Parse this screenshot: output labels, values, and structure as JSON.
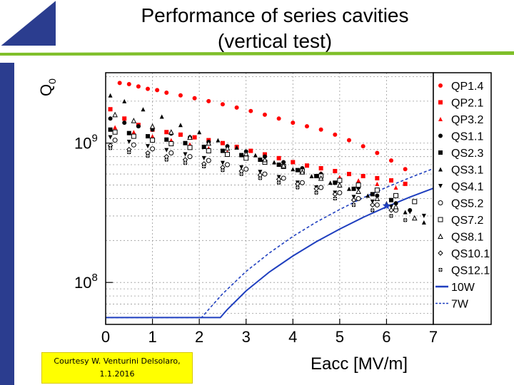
{
  "slide": {
    "title_line1": "Performance of series cavities",
    "title_line2": "(vertical test)",
    "courtesy_line1": "Courtesy W. Venturini Delsolaro,",
    "courtesy_line2": "1.1.2016",
    "colors": {
      "accent_green": "#7fbf2a",
      "accent_blue": "#2b3d8f",
      "courtesy_bg": "#ffff00"
    }
  },
  "chart_data": {
    "type": "scatter",
    "title": "",
    "xlabel": "Eacc [MV/m]",
    "ylabel": "Q0",
    "ylabel_main": "Q",
    "ylabel_sub": "0",
    "xlim": [
      0,
      7
    ],
    "ylim": [
      50000000.0,
      3200000000.0
    ],
    "y_scale": "log",
    "grid": true,
    "legend_position": "right",
    "x_ticks": [
      0,
      1,
      2,
      3,
      4,
      5,
      6,
      7
    ],
    "x_tick_labels": [
      "0",
      "1",
      "2",
      "3",
      "4",
      "5",
      "6",
      "7"
    ],
    "y_tick_labels": [
      {
        "value": 1000000000.0,
        "base": "10",
        "exp": "9"
      },
      {
        "value": 100000000.0,
        "base": "10",
        "exp": "8"
      }
    ],
    "series": [
      {
        "name": "QP1.4",
        "marker": "circle",
        "color": "#ff0000",
        "x": [
          0.3,
          0.5,
          0.7,
          0.9,
          1.1,
          1.3,
          1.6,
          1.9,
          2.2,
          2.5,
          2.8,
          3.1,
          3.4,
          3.7,
          4.0,
          4.3,
          4.6,
          4.9,
          5.2,
          5.5,
          5.8,
          6.1,
          6.4
        ],
        "y": [
          2700000000.0,
          2650000000.0,
          2550000000.0,
          2450000000.0,
          2400000000.0,
          2300000000.0,
          2200000000.0,
          2100000000.0,
          2000000000.0,
          1900000000.0,
          1800000000.0,
          1700000000.0,
          1600000000.0,
          1500000000.0,
          1400000000.0,
          1320000000.0,
          1250000000.0,
          1150000000.0,
          1050000000.0,
          950000000.0,
          850000000.0,
          750000000.0,
          650000000.0
        ]
      },
      {
        "name": "QP2.1",
        "marker": "square",
        "color": "#ff0000",
        "x": [
          0.1,
          0.4,
          0.7,
          1.0,
          1.3,
          1.6,
          1.9,
          2.2,
          2.5,
          2.8,
          3.1,
          3.4,
          3.7,
          4.0,
          4.3,
          4.6,
          4.9,
          5.2,
          5.5,
          5.8,
          6.1,
          6.4
        ],
        "y": [
          1750000000.0,
          1500000000.0,
          1350000000.0,
          1250000000.0,
          1200000000.0,
          1150000000.0,
          1100000000.0,
          1050000000.0,
          1000000000.0,
          940000000.0,
          880000000.0,
          830000000.0,
          780000000.0,
          730000000.0,
          690000000.0,
          660000000.0,
          630000000.0,
          600000000.0,
          580000000.0,
          560000000.0,
          540000000.0,
          510000000.0
        ]
      },
      {
        "name": "QP3.2",
        "marker": "triangle-up",
        "color": "#ff0000",
        "x": [
          0.2,
          0.6,
          1.0,
          1.4,
          1.8,
          2.2,
          2.6,
          3.0,
          3.4,
          3.8,
          4.2,
          4.6,
          5.0,
          5.4,
          5.8,
          6.2
        ],
        "y": [
          1300000000.0,
          1200000000.0,
          1120000000.0,
          1050000000.0,
          980000000.0,
          920000000.0,
          860000000.0,
          800000000.0,
          740000000.0,
          690000000.0,
          650000000.0,
          610000000.0,
          570000000.0,
          540000000.0,
          510000000.0,
          480000000.0
        ]
      },
      {
        "name": "QS1.1",
        "marker": "circle",
        "color": "#000000",
        "x": [
          0.1,
          0.4,
          0.7,
          1.0,
          1.4,
          1.8,
          2.2,
          2.6,
          3.0,
          3.4,
          3.8,
          4.2,
          4.6,
          5.0,
          5.4,
          5.8,
          6.2,
          6.5
        ],
        "y": [
          1500000000.0,
          1400000000.0,
          1320000000.0,
          1250000000.0,
          1170000000.0,
          1100000000.0,
          1020000000.0,
          950000000.0,
          870000000.0,
          800000000.0,
          730000000.0,
          660000000.0,
          600000000.0,
          540000000.0,
          480000000.0,
          420000000.0,
          370000000.0,
          330000000.0
        ]
      },
      {
        "name": "QS2.3",
        "marker": "square",
        "color": "#000000",
        "x": [
          0.1,
          0.5,
          0.9,
          1.3,
          1.7,
          2.1,
          2.5,
          2.9,
          3.3,
          3.7,
          4.1,
          4.5,
          4.9,
          5.3,
          5.7,
          6.1
        ],
        "y": [
          1250000000.0,
          1180000000.0,
          1120000000.0,
          1060000000.0,
          1000000000.0,
          940000000.0,
          880000000.0,
          820000000.0,
          760000000.0,
          700000000.0,
          640000000.0,
          580000000.0,
          520000000.0,
          470000000.0,
          430000000.0,
          390000000.0
        ]
      },
      {
        "name": "QS3.1",
        "marker": "triangle-up",
        "color": "#000000",
        "x": [
          0.1,
          0.4,
          0.8,
          1.2,
          1.6,
          2.0,
          2.4,
          2.8,
          3.2,
          3.6,
          4.0,
          4.4,
          4.8,
          5.2,
          5.6,
          6.0,
          6.4,
          6.8
        ],
        "y": [
          2200000000.0,
          2000000000.0,
          1750000000.0,
          1550000000.0,
          1350000000.0,
          1200000000.0,
          1050000000.0,
          930000000.0,
          820000000.0,
          730000000.0,
          650000000.0,
          580000000.0,
          520000000.0,
          470000000.0,
          420000000.0,
          370000000.0,
          320000000.0,
          270000000.0
        ]
      },
      {
        "name": "QS4.1",
        "marker": "triangle-down",
        "color": "#000000",
        "x": [
          0.1,
          0.5,
          0.9,
          1.3,
          1.7,
          2.1,
          2.5,
          2.9,
          3.3,
          3.7,
          4.1,
          4.5,
          4.9,
          5.3,
          5.7,
          6.1,
          6.5,
          6.8
        ],
        "y": [
          1100000000.0,
          1020000000.0,
          950000000.0,
          890000000.0,
          830000000.0,
          780000000.0,
          720000000.0,
          670000000.0,
          620000000.0,
          570000000.0,
          520000000.0,
          480000000.0,
          440000000.0,
          410000000.0,
          380000000.0,
          350000000.0,
          320000000.0,
          300000000.0
        ]
      },
      {
        "name": "QS5.2",
        "marker": "circle-open",
        "color": "#000000",
        "x": [
          0.2,
          0.6,
          1.0,
          1.4,
          1.8,
          2.2,
          2.6,
          3.0,
          3.4,
          3.8,
          4.2,
          4.6,
          5.0,
          5.4,
          5.8,
          6.2
        ],
        "y": [
          1050000000.0,
          970000000.0,
          910000000.0,
          850000000.0,
          800000000.0,
          750000000.0,
          700000000.0,
          650000000.0,
          600000000.0,
          560000000.0,
          520000000.0,
          480000000.0,
          440000000.0,
          400000000.0,
          360000000.0,
          330000000.0
        ]
      },
      {
        "name": "QS7.2",
        "marker": "square-open",
        "color": "#000000",
        "x": [
          0.2,
          0.6,
          1.0,
          1.4,
          1.8,
          2.2,
          2.6,
          3.0,
          3.4,
          3.8,
          4.2,
          4.6,
          5.0,
          5.4,
          5.8,
          6.2,
          6.6
        ],
        "y": [
          1200000000.0,
          1120000000.0,
          1050000000.0,
          990000000.0,
          930000000.0,
          880000000.0,
          830000000.0,
          780000000.0,
          730000000.0,
          680000000.0,
          630000000.0,
          580000000.0,
          540000000.0,
          500000000.0,
          460000000.0,
          420000000.0,
          380000000.0
        ]
      },
      {
        "name": "QS8.1",
        "marker": "triangle-up-open",
        "color": "#000000",
        "x": [
          0.2,
          0.6,
          1.0,
          1.4,
          1.8,
          2.2,
          2.6,
          3.0,
          3.4,
          3.8,
          4.2,
          4.6,
          5.0,
          5.4,
          5.8,
          6.2,
          6.6
        ],
        "y": [
          1600000000.0,
          1450000000.0,
          1320000000.0,
          1200000000.0,
          1100000000.0,
          1000000000.0,
          920000000.0,
          840000000.0,
          760000000.0,
          690000000.0,
          620000000.0,
          560000000.0,
          500000000.0,
          450000000.0,
          400000000.0,
          350000000.0,
          290000000.0
        ]
      },
      {
        "name": "QS10.1",
        "marker": "diamond-open",
        "color": "#000000",
        "x": [
          0.1,
          0.5,
          0.9,
          1.3,
          1.7,
          2.1,
          2.5,
          2.9,
          3.3,
          3.7,
          4.1,
          4.5,
          4.9,
          5.3,
          5.7,
          6.1
        ],
        "y": [
          960000000.0,
          900000000.0,
          850000000.0,
          800000000.0,
          760000000.0,
          710000000.0,
          670000000.0,
          630000000.0,
          590000000.0,
          550000000.0,
          510000000.0,
          470000000.0,
          430000000.0,
          390000000.0,
          360000000.0,
          330000000.0
        ]
      },
      {
        "name": "QS12.1",
        "marker": "circle-plus",
        "color": "#000000",
        "x": [
          0.1,
          0.5,
          0.9,
          1.3,
          1.7,
          2.1,
          2.5,
          2.9,
          3.3,
          3.7,
          4.1,
          4.5,
          4.9,
          5.3,
          5.7,
          6.1,
          6.4
        ],
        "y": [
          920000000.0,
          860000000.0,
          810000000.0,
          760000000.0,
          720000000.0,
          680000000.0,
          640000000.0,
          600000000.0,
          560000000.0,
          520000000.0,
          480000000.0,
          440000000.0,
          400000000.0,
          360000000.0,
          330000000.0,
          300000000.0,
          280000000.0
        ]
      }
    ],
    "curves": [
      {
        "name": "10W",
        "style": "solid",
        "color": "#1f3fbf",
        "x": [
          0,
          2.45,
          2.6,
          3.0,
          3.5,
          4.0,
          4.5,
          5.0,
          5.5,
          6.0,
          6.5,
          7.0
        ],
        "y": [
          56000000.0,
          56000000.0,
          64000000.0,
          87000000.0,
          119000000.0,
          155000000.0,
          196000000.0,
          242000000.0,
          293000000.0,
          349000000.0,
          410000000.0,
          474000000.0
        ]
      },
      {
        "name": "7W",
        "style": "dashed",
        "color": "#1f3fbf",
        "x": [
          0,
          2.05,
          2.2,
          2.5,
          3.0,
          3.5,
          4.0,
          4.5,
          5.0,
          5.5,
          6.0,
          6.5,
          7.0
        ],
        "y": [
          56000000.0,
          56000000.0,
          64000000.0,
          83000000.0,
          120000000.0,
          163000000.0,
          214000000.0,
          271000000.0,
          334000000.0,
          405000000.0,
          482000000.0,
          565000000.0,
          656000000.0
        ]
      }
    ],
    "annotations": [
      {
        "text": "",
        "marker": "star",
        "color": "#1f3fbf",
        "x": 6.0,
        "y": 355000000.0
      }
    ]
  }
}
